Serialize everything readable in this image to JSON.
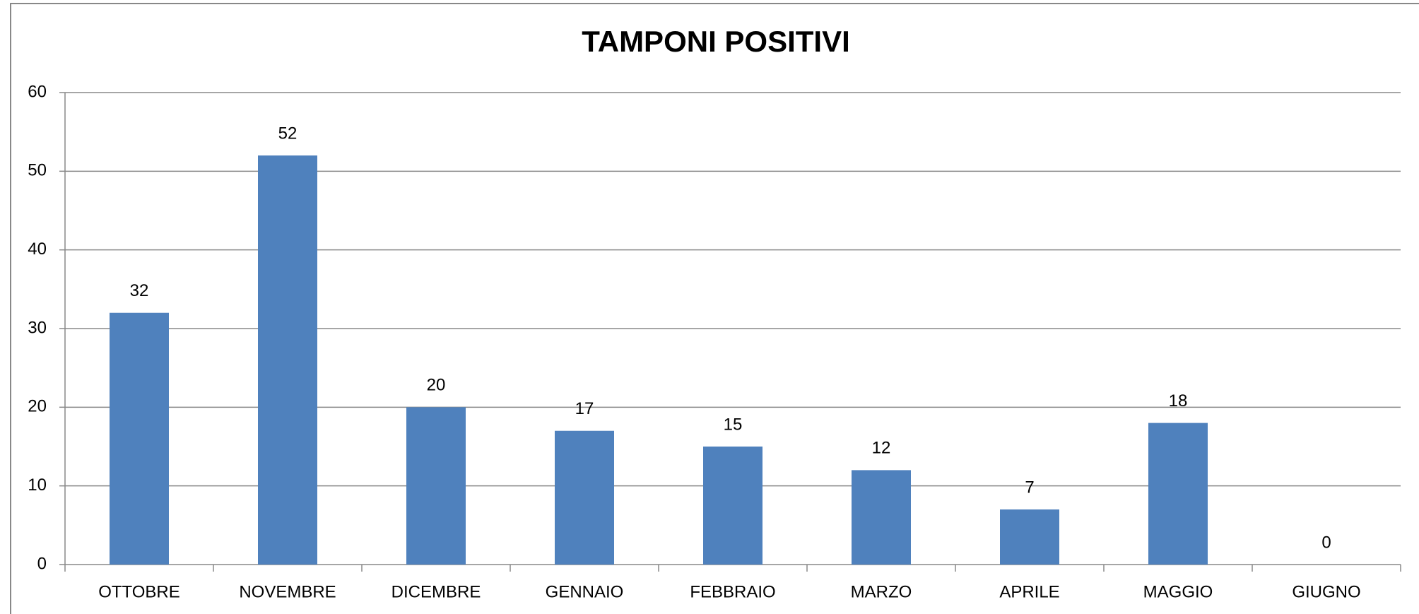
{
  "chart_data": {
    "type": "bar",
    "title": "TAMPONI POSITIVI",
    "categories": [
      "OTTOBRE",
      "NOVEMBRE",
      "DICEMBRE",
      "GENNAIO",
      "FEBBRAIO",
      "MARZO",
      "APRILE",
      "MAGGIO",
      "GIUGNO"
    ],
    "values": [
      32,
      52,
      20,
      17,
      15,
      12,
      7,
      18,
      0
    ],
    "color": "#4f81bd",
    "ylim": [
      0,
      60
    ],
    "yticks": [
      0,
      10,
      20,
      30,
      40,
      50,
      60
    ],
    "grid": true,
    "data_labels": true
  }
}
